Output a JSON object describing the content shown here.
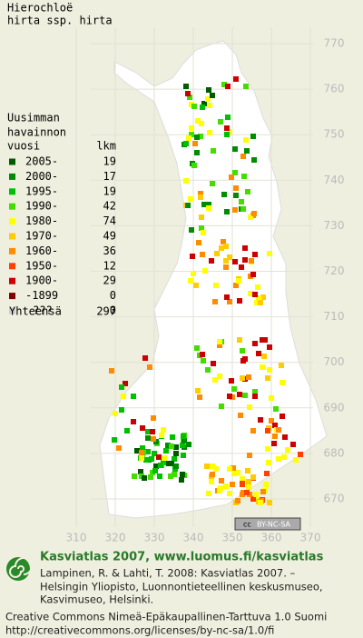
{
  "map": {
    "title": [
      "Hierochloë",
      "hirta ssp. hirta"
    ],
    "legend": {
      "heading": [
        "Uusimman",
        "havainnon"
      ],
      "col1": "vuosi",
      "col2": "lkm",
      "rows": [
        {
          "label": "2005-",
          "count": 19,
          "color": "#005a00"
        },
        {
          "label": "2000-",
          "count": 17,
          "color": "#008c00"
        },
        {
          "label": "1995-",
          "count": 19,
          "color": "#00c000"
        },
        {
          "label": "1990-",
          "count": 42,
          "color": "#44dd00"
        },
        {
          "label": "1980-",
          "count": 74,
          "color": "#ffff00"
        },
        {
          "label": "1970-",
          "count": 49,
          "color": "#ffcc00"
        },
        {
          "label": "1960-",
          "count": 36,
          "color": "#ff8c00"
        },
        {
          "label": "1950-",
          "count": 12,
          "color": "#ff4000"
        },
        {
          "label": "1900-",
          "count": 29,
          "color": "#cc0000"
        },
        {
          "label": "-1899",
          "count": 0,
          "color": "#800000"
        },
        {
          "label": "???",
          "count": 0,
          "color": "#cccccc"
        }
      ],
      "total_label": "Yhteensä",
      "total": 297
    },
    "x_ticks": [
      310,
      320,
      330,
      340,
      350,
      360,
      370
    ],
    "y_ticks": [
      670,
      680,
      690,
      700,
      710,
      720,
      730,
      740,
      750,
      760,
      770
    ],
    "license_badge": [
      "cc",
      "BY-NC-SA"
    ]
  },
  "footer": {
    "heading": "Kasviatlas 2007, www.luomus.fi/kasviatlas",
    "citation": [
      "Lampinen, R. & Lahti, T. 2008: Kasviatlas 2007. –",
      "Helsingin Yliopisto, Luonnontieteellinen keskusmuseo,",
      "Kasvimuseo, Helsinki."
    ],
    "license": [
      "Creative Commons Nimeä-Epäkaupallinen-Tarttuva 1.0 Suomi",
      "http://creativecommons.org/licenses/by-nc-sa/1.0/fi"
    ]
  }
}
